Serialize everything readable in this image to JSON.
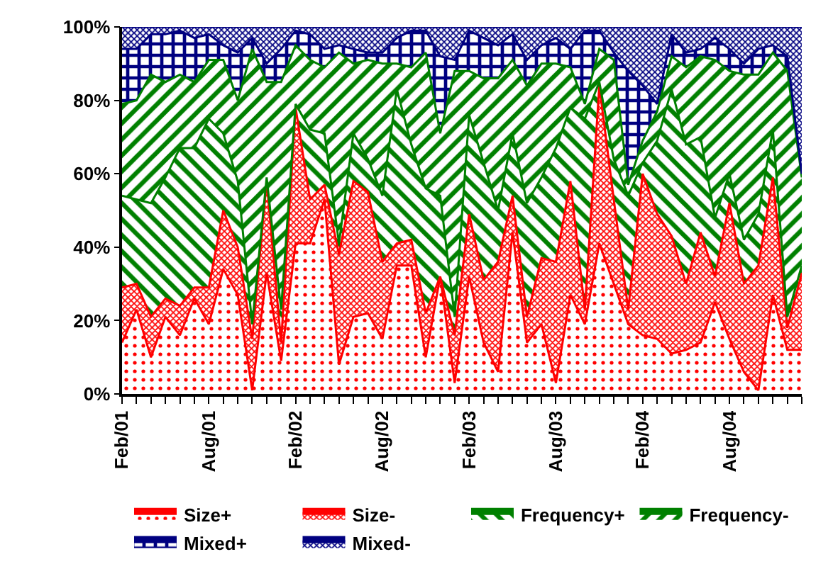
{
  "chart_data": {
    "type": "area",
    "stacked": true,
    "categories": [
      "Feb/01",
      null,
      null,
      null,
      null,
      null,
      "Aug/01",
      null,
      null,
      null,
      null,
      null,
      "Feb/02",
      null,
      null,
      null,
      null,
      null,
      "Aug/02",
      null,
      null,
      null,
      null,
      null,
      "Feb/03",
      null,
      null,
      null,
      null,
      null,
      "Aug/03",
      null,
      null,
      null,
      null,
      null,
      "Feb/04",
      null,
      null,
      null,
      null,
      null,
      "Aug/04",
      null,
      null,
      null,
      null,
      null
    ],
    "series": [
      {
        "name": "Size+",
        "color": "#ff0000",
        "values": [
          14,
          23,
          10,
          21,
          16,
          26,
          19,
          34,
          27,
          1,
          33,
          9,
          41,
          41,
          53,
          8,
          21,
          22,
          15,
          35,
          35,
          10,
          32,
          3,
          32,
          14,
          6,
          44,
          14,
          19,
          3,
          27,
          19,
          41,
          30,
          19,
          16,
          15,
          11,
          12,
          14,
          25,
          15,
          6,
          1,
          27,
          12,
          12
        ]
      },
      {
        "name": "Size-",
        "color": "#ff0000",
        "values": [
          15,
          7,
          11,
          5,
          8,
          3,
          10,
          16,
          13,
          14,
          25,
          5,
          37,
          12,
          4,
          30,
          37,
          33,
          21,
          6,
          7,
          12,
          0,
          13,
          17,
          17,
          30,
          10,
          7,
          18,
          33,
          31,
          4,
          43,
          23,
          4,
          44,
          34,
          32,
          18,
          30,
          7,
          37,
          24,
          34,
          32,
          6,
          21
        ]
      },
      {
        "name": "Frequency+",
        "color": "#008000",
        "values": [
          25,
          23,
          31,
          33,
          43,
          38,
          46,
          21,
          18,
          4,
          1,
          9,
          1,
          19,
          14,
          3,
          13,
          9,
          18,
          42,
          26,
          34,
          22,
          5,
          27,
          32,
          14,
          17,
          31,
          22,
          31,
          20,
          52,
          1,
          11,
          31,
          3,
          20,
          40,
          38,
          26,
          16,
          8,
          12,
          14,
          13,
          3,
          2
        ]
      },
      {
        "name": "Frequency-",
        "color": "#008000",
        "values": [
          25,
          27,
          35,
          26,
          20,
          18,
          16,
          20,
          22,
          75,
          26,
          62,
          16,
          19,
          18,
          52,
          19,
          27,
          36,
          7,
          21,
          37,
          17,
          67,
          12,
          23,
          36,
          20,
          32,
          31,
          23,
          11,
          4,
          9,
          27,
          3,
          6,
          8,
          9,
          21,
          22,
          43,
          28,
          45,
          38,
          21,
          67,
          24
        ]
      },
      {
        "name": "Mixed+",
        "color": "#000080",
        "values": [
          15,
          14,
          11,
          13,
          12,
          12,
          7,
          4,
          13,
          3,
          5,
          9,
          4,
          7,
          5,
          2,
          4,
          2,
          3,
          7,
          10,
          6,
          21,
          3,
          11,
          11,
          9,
          7,
          7,
          5,
          7,
          5,
          20,
          5,
          2,
          31,
          15,
          2,
          6,
          4,
          2,
          6,
          6,
          3,
          7,
          2,
          4,
          1
        ]
      },
      {
        "name": "Mixed-",
        "color": "#000080",
        "values": [
          6,
          6,
          2,
          2,
          1,
          3,
          2,
          5,
          7,
          3,
          10,
          6,
          1,
          2,
          6,
          5,
          6,
          7,
          7,
          3,
          1,
          1,
          8,
          9,
          1,
          3,
          5,
          2,
          9,
          5,
          3,
          6,
          1,
          1,
          7,
          12,
          16,
          21,
          2,
          7,
          6,
          3,
          6,
          10,
          6,
          5,
          8,
          40
        ]
      }
    ],
    "ylim": [
      0,
      100
    ],
    "yticks": [
      {
        "value": 0,
        "label": "0%"
      },
      {
        "value": 20,
        "label": "20%"
      },
      {
        "value": 40,
        "label": "40%"
      },
      {
        "value": 60,
        "label": "60%"
      },
      {
        "value": 80,
        "label": "80%"
      },
      {
        "value": 100,
        "label": "100%"
      }
    ],
    "legend": "bottom"
  }
}
